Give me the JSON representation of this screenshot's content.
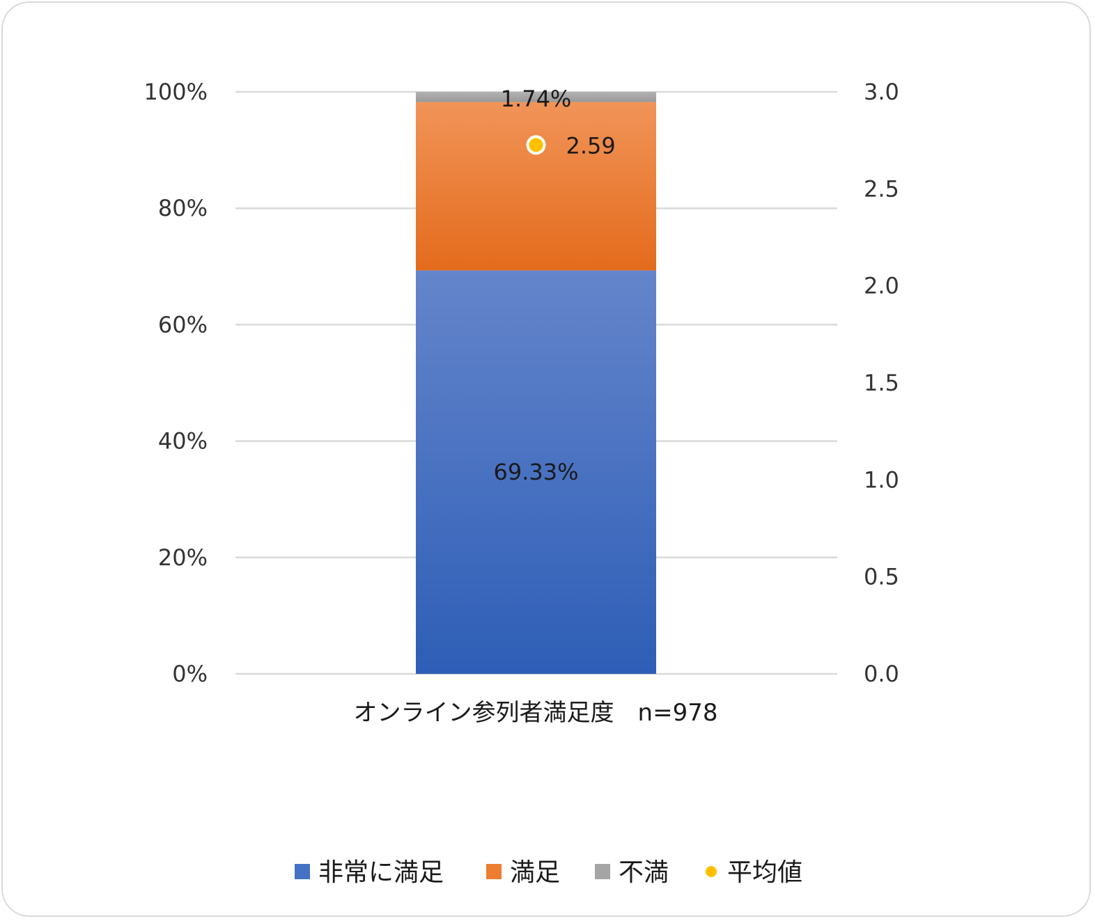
{
  "chart_data": {
    "type": "bar",
    "stacked": true,
    "percent_stacked": true,
    "categories": [
      "オンライン参列者満足度　n=978"
    ],
    "series": [
      {
        "name": "非常に満足",
        "values": [
          69.33
        ],
        "label": "69.33%",
        "color": "#4472c4"
      },
      {
        "name": "満足",
        "values": [
          28.93
        ],
        "label": "",
        "color": "#ed7d31"
      },
      {
        "name": "不満",
        "values": [
          1.74
        ],
        "label": "1.74%",
        "color": "#a5a5a5"
      }
    ],
    "secondary_series": {
      "name": "平均値",
      "values": [
        2.59
      ],
      "label": "2.59",
      "color": "#ffc000",
      "type": "scatter"
    },
    "y_axis": {
      "min": 0,
      "max": 100,
      "ticks": [
        "0%",
        "20%",
        "40%",
        "60%",
        "80%",
        "100%"
      ]
    },
    "y2_axis": {
      "min": 0,
      "max": 3.0,
      "ticks": [
        "0.0",
        "0.5",
        "1.0",
        "1.5",
        "2.0",
        "2.5",
        "3.0"
      ]
    },
    "grid": true,
    "legend": {
      "position": "bottom",
      "entries": [
        "非常に満足",
        "満足",
        "不満",
        "平均値"
      ]
    }
  }
}
